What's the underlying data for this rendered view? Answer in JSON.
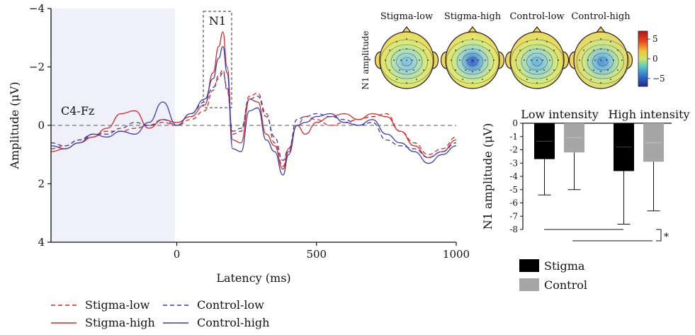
{
  "chart_data": [
    {
      "type": "line",
      "annotation_channel": "C4-Fz",
      "annotation_component": "N1",
      "xlabel": "Latency (ms)",
      "ylabel": "Amplitude (μV)",
      "xlim": [
        -450,
        1000
      ],
      "ylim": [
        4,
        -4
      ],
      "y_inverted": true,
      "x_ticks": [
        0,
        500,
        1000
      ],
      "y_ticks": [
        -4,
        -2,
        0,
        2,
        4
      ],
      "x_tick_labels": [
        "0",
        "500",
        "1000"
      ],
      "y_tick_labels": [
        "−4",
        "−2",
        "0",
        "2",
        "4"
      ],
      "baseline_shaded": [
        -450,
        0
      ],
      "n1_window": [
        100,
        200
      ],
      "legend_position": "bottom-left",
      "series": [
        {
          "name": "Stigma-low",
          "color": "#d62728",
          "dash": true,
          "x": [
            -450,
            -400,
            -350,
            -300,
            -250,
            -200,
            -150,
            -100,
            -50,
            0,
            50,
            100,
            130,
            150,
            165,
            180,
            200,
            230,
            260,
            290,
            320,
            350,
            380,
            400,
            430,
            460,
            500,
            550,
            600,
            650,
            700,
            750,
            800,
            850,
            900,
            950,
            1000
          ],
          "y": [
            0.8,
            0.7,
            0.5,
            0.4,
            0.2,
            0.2,
            0.1,
            0,
            -0.1,
            0,
            -0.2,
            -0.5,
            -1.2,
            -1.7,
            -1.9,
            -1.2,
            0.3,
            0.2,
            -1.0,
            -1.1,
            -0.4,
            0.6,
            1.4,
            0.8,
            0,
            -0.3,
            -0.2,
            0,
            -0.1,
            -0.2,
            -0.3,
            -0.4,
            0.2,
            0.6,
            1.0,
            0.8,
            0.4
          ]
        },
        {
          "name": "Stigma-high",
          "color": "#d62728",
          "dash": false,
          "x": [
            -450,
            -400,
            -350,
            -300,
            -250,
            -200,
            -150,
            -100,
            -50,
            0,
            50,
            100,
            130,
            150,
            165,
            180,
            200,
            230,
            260,
            290,
            320,
            350,
            380,
            400,
            430,
            460,
            500,
            550,
            600,
            650,
            700,
            750,
            800,
            850,
            900,
            950,
            1000
          ],
          "y": [
            0.9,
            0.8,
            0.6,
            0.4,
            0.1,
            -0.4,
            -0.5,
            0.1,
            -0.2,
            -0.1,
            -0.3,
            -0.7,
            -1.8,
            -2.7,
            -3.2,
            -2.0,
            0.5,
            0.6,
            -0.9,
            -0.8,
            0.3,
            0.7,
            1.5,
            0.9,
            0,
            0.3,
            -0.1,
            -0.3,
            -0.4,
            -0.2,
            -0.4,
            -0.3,
            0.2,
            0.7,
            1.1,
            0.9,
            0.5
          ]
        },
        {
          "name": "Control-low",
          "color": "#3b3ea8",
          "dash": true,
          "x": [
            -450,
            -400,
            -350,
            -300,
            -250,
            -200,
            -150,
            -100,
            -50,
            0,
            50,
            100,
            130,
            150,
            165,
            180,
            200,
            230,
            260,
            290,
            320,
            350,
            380,
            400,
            430,
            460,
            500,
            550,
            600,
            650,
            700,
            750,
            800,
            850,
            900,
            950,
            1000
          ],
          "y": [
            0.6,
            0.7,
            0.5,
            0.3,
            0.3,
            0.1,
            -0.1,
            0,
            -0.2,
            0,
            -0.4,
            -0.8,
            -1.3,
            -1.6,
            -1.8,
            -1.3,
            0.2,
            0.1,
            -0.9,
            -1.0,
            -0.3,
            0.4,
            1.2,
            0.8,
            -0.2,
            -0.3,
            -0.4,
            -0.3,
            -0.2,
            0,
            -0.1,
            0.5,
            0.7,
            0.8,
            1.1,
            0.9,
            0.6
          ]
        },
        {
          "name": "Control-high",
          "color": "#3b3ea8",
          "dash": false,
          "x": [
            -450,
            -400,
            -350,
            -300,
            -250,
            -200,
            -150,
            -100,
            -50,
            0,
            50,
            100,
            130,
            150,
            165,
            180,
            200,
            230,
            260,
            290,
            320,
            350,
            380,
            400,
            430,
            460,
            500,
            550,
            600,
            650,
            700,
            750,
            800,
            850,
            900,
            950,
            1000
          ],
          "y": [
            0.7,
            0.8,
            0.6,
            0.3,
            0.4,
            0.2,
            0.3,
            -0.1,
            -0.8,
            0,
            -0.4,
            -0.9,
            -1.6,
            -2.3,
            -2.7,
            -1.8,
            0.8,
            0.9,
            -0.5,
            -0.6,
            0.5,
            0.9,
            1.7,
            1.0,
            0,
            -0.1,
            -0.3,
            -0.4,
            -0.1,
            0,
            -0.2,
            0.3,
            0.6,
            0.9,
            1.3,
            1.0,
            0.7
          ]
        }
      ]
    },
    {
      "type": "heatmap",
      "ylabel": "N1 amplitude",
      "maps": [
        "Stigma-low",
        "Stigma-high",
        "Control-low",
        "Control-high"
      ],
      "center_values": [
        -3,
        -5.5,
        -3.5,
        -4
      ],
      "colorbar_range": [
        -7,
        7
      ],
      "colorbar_ticks": [
        5,
        0,
        -5
      ],
      "colorbar_tick_labels": [
        "5",
        "0",
        "−5"
      ]
    },
    {
      "type": "bar",
      "categories": [
        "Low intensity",
        "High intensity"
      ],
      "ylabel": "N1 amplitude (μV)",
      "ylim": [
        -8,
        0
      ],
      "y_ticks": [
        0,
        -1,
        -2,
        -3,
        -4,
        -5,
        -6,
        -7,
        -8
      ],
      "y_tick_labels": [
        "0",
        "-1",
        "-2",
        "-3",
        "-4",
        "-5",
        "-6",
        "-7",
        "-8"
      ],
      "significance": "*",
      "legend_position": "bottom-left",
      "series": [
        {
          "name": "Stigma",
          "color": "#000000",
          "values": [
            -2.7,
            -3.6
          ],
          "errors": [
            2.7,
            4.0
          ]
        },
        {
          "name": "Control",
          "color": "#a6a6a6",
          "values": [
            -2.2,
            -2.9
          ],
          "errors": [
            2.8,
            3.7
          ]
        }
      ]
    }
  ]
}
